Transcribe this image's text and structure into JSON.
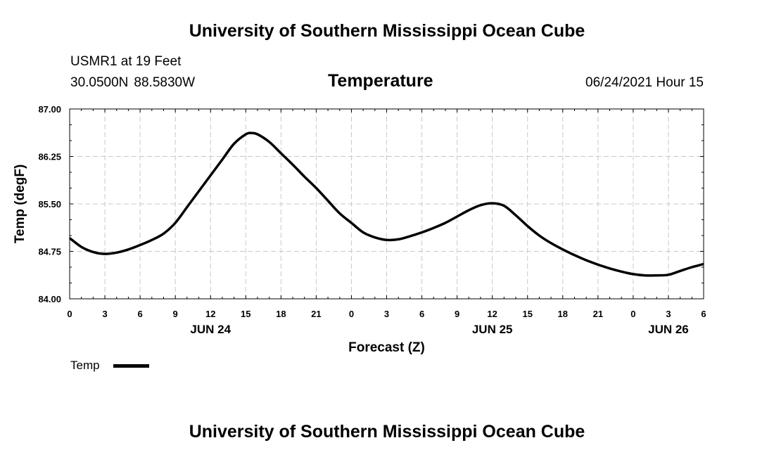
{
  "header": {
    "title_top": "University of Southern Mississippi Ocean Cube",
    "station": "USMR1 at 19 Feet",
    "lat": "30.0500N",
    "lon": "88.5830W",
    "chart_title": "Temperature",
    "datetime": "06/24/2021 Hour 15"
  },
  "footer": {
    "title_bottom": "University of Southern Mississippi Ocean Cube"
  },
  "legend": {
    "label": "Temp",
    "color": "#000000"
  },
  "chart_data": {
    "type": "line",
    "title": "Temperature",
    "xlabel": "Forecast (Z)",
    "ylabel": "Temp (degF)",
    "xlim": [
      0,
      54
    ],
    "ylim": [
      84.0,
      87.0
    ],
    "grid": true,
    "y_ticks": [
      "87.00",
      "86.25",
      "85.50",
      "84.75",
      "84.00"
    ],
    "y_tick_values": [
      87.0,
      86.25,
      85.5,
      84.75,
      84.0
    ],
    "x_ticks": [
      0,
      3,
      6,
      9,
      12,
      15,
      18,
      21,
      24,
      27,
      30,
      33,
      36,
      39,
      42,
      45,
      48,
      51,
      54
    ],
    "x_tick_labels": [
      "0",
      "3",
      "6",
      "9",
      "12",
      "15",
      "18",
      "21",
      "0",
      "3",
      "6",
      "9",
      "12",
      "15",
      "18",
      "21",
      "0",
      "3",
      "6"
    ],
    "date_labels": [
      {
        "label": "JUN 24",
        "x": 12
      },
      {
        "label": "JUN 25",
        "x": 36
      },
      {
        "label": "JUN 26",
        "x": 51
      }
    ],
    "series": [
      {
        "name": "Temp",
        "x": [
          0,
          1,
          2,
          3,
          4,
          5,
          6,
          7,
          8,
          9,
          10,
          11,
          12,
          13,
          14,
          15,
          15.5,
          16,
          17,
          18,
          19,
          20,
          21,
          22,
          23,
          24,
          25,
          26,
          27,
          28,
          29,
          30,
          31,
          32,
          33,
          34,
          35,
          36,
          37,
          38,
          39,
          40,
          41,
          42,
          43,
          44,
          45,
          46,
          47,
          48,
          49,
          50,
          51,
          52,
          53,
          54
        ],
        "values": [
          84.96,
          84.82,
          84.74,
          84.71,
          84.73,
          84.78,
          84.85,
          84.93,
          85.03,
          85.2,
          85.45,
          85.7,
          85.95,
          86.2,
          86.45,
          86.6,
          86.62,
          86.6,
          86.48,
          86.3,
          86.12,
          85.93,
          85.75,
          85.55,
          85.35,
          85.2,
          85.05,
          84.97,
          84.93,
          84.94,
          84.99,
          85.05,
          85.12,
          85.2,
          85.3,
          85.4,
          85.48,
          85.51,
          85.47,
          85.32,
          85.15,
          85.0,
          84.88,
          84.78,
          84.69,
          84.61,
          84.54,
          84.48,
          84.43,
          84.39,
          84.37,
          84.37,
          84.38,
          84.44,
          84.5,
          84.55
        ]
      }
    ]
  }
}
